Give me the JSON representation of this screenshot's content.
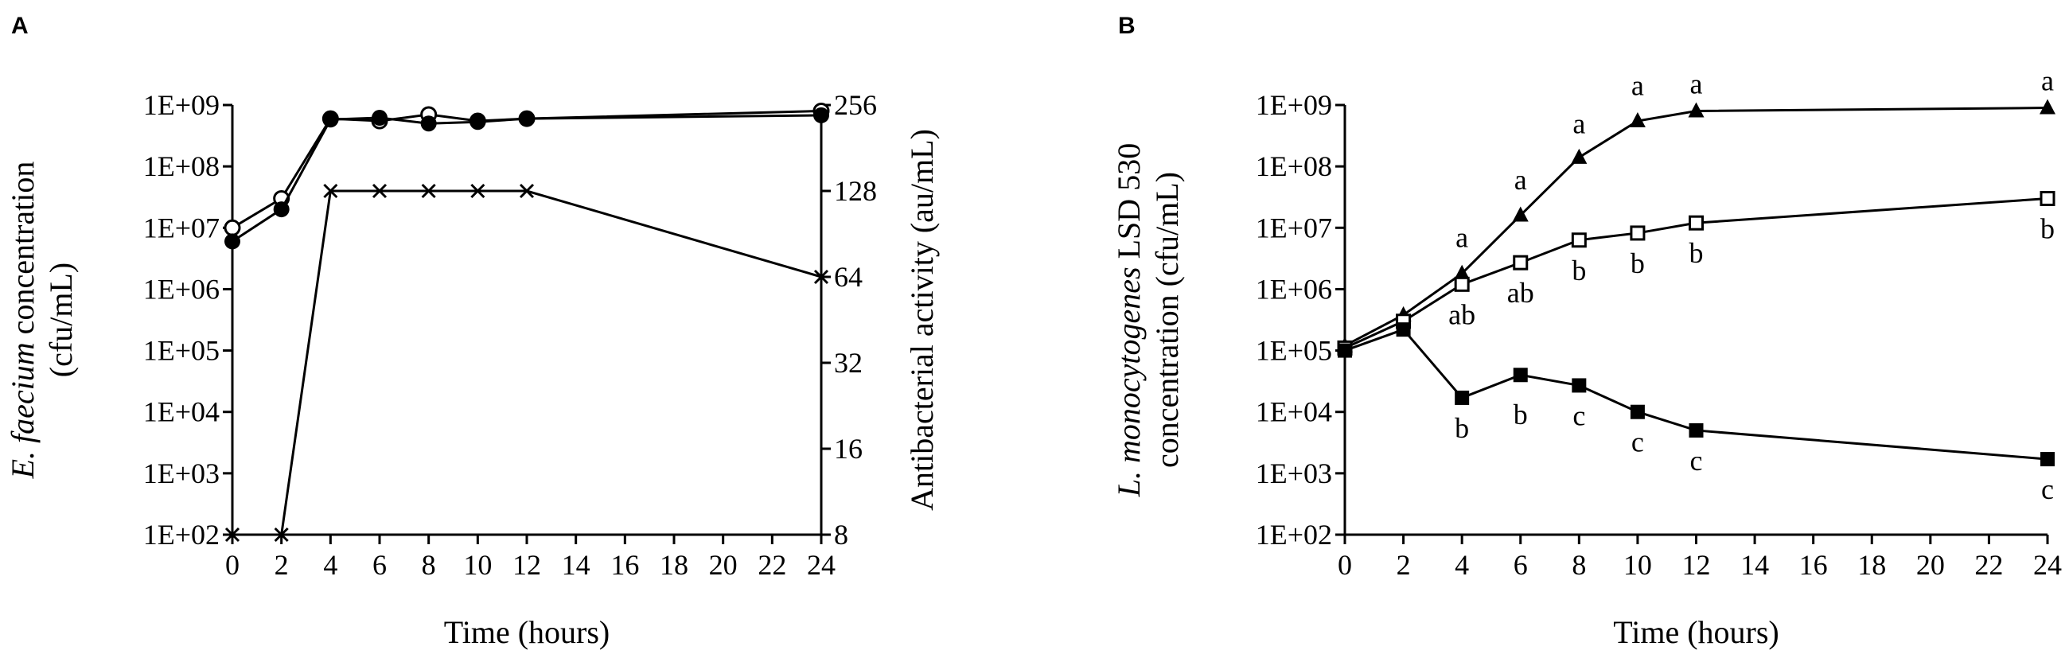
{
  "chart_data": [
    {
      "panel_label": "A",
      "type": "line",
      "ylabel_italic": "E. faecium",
      "ylabel_rest": " concentration",
      "ylabel_line2": "(cfu/mL)",
      "y2label": "Antibacterial activity (au/mL)",
      "xlabel": "Time (hours)",
      "x_ticks": [
        0,
        2,
        4,
        6,
        8,
        10,
        12,
        14,
        16,
        18,
        20,
        22,
        24
      ],
      "xlim": [
        0,
        24
      ],
      "y_scale": "log",
      "ylim": [
        100,
        1000000000
      ],
      "y_ticks": [
        "1E+02",
        "1E+03",
        "1E+04",
        "1E+05",
        "1E+06",
        "1E+07",
        "1E+08",
        "1E+09"
      ],
      "y_tick_values": [
        100,
        1000,
        10000,
        100000,
        1000000,
        10000000,
        100000000,
        1000000000
      ],
      "y2_scale": "log2",
      "y2lim": [
        8,
        256
      ],
      "y2_ticks": [
        "8",
        "16",
        "32",
        "64",
        "128",
        "256"
      ],
      "y2_tick_values": [
        8,
        16,
        32,
        64,
        128,
        256
      ],
      "series": [
        {
          "marker": "open-circle",
          "axis": "left",
          "x": [
            0,
            2,
            4,
            6,
            8,
            10,
            12,
            24
          ],
          "y": [
            10000000,
            30000000,
            600000000,
            550000000,
            700000000,
            550000000,
            600000000,
            800000000
          ]
        },
        {
          "marker": "filled-circle",
          "axis": "left",
          "x": [
            0,
            2,
            4,
            6,
            8,
            10,
            12,
            24
          ],
          "y": [
            6000000,
            20000000,
            580000000,
            620000000,
            500000000,
            530000000,
            600000000,
            680000000
          ]
        },
        {
          "marker": "cross",
          "axis": "right",
          "x": [
            0,
            2,
            4,
            6,
            8,
            10,
            12,
            24
          ],
          "y": [
            8,
            8,
            128,
            128,
            128,
            128,
            128,
            64
          ]
        }
      ],
      "point_labels": []
    },
    {
      "panel_label": "B",
      "type": "line",
      "ylabel_italic": "L. monocytogenes",
      "ylabel_rest": " LSD 530",
      "ylabel_line2": "concentration (cfu/mL)",
      "y2label": "",
      "xlabel": "Time (hours)",
      "x_ticks": [
        0,
        2,
        4,
        6,
        8,
        10,
        12,
        14,
        16,
        18,
        20,
        22,
        24
      ],
      "xlim": [
        0,
        24
      ],
      "y_scale": "log",
      "ylim": [
        100,
        1000000000
      ],
      "y_ticks": [
        "1E+02",
        "1E+03",
        "1E+04",
        "1E+05",
        "1E+06",
        "1E+07",
        "1E+08",
        "1E+09"
      ],
      "y_tick_values": [
        100,
        1000,
        10000,
        100000,
        1000000,
        10000000,
        100000000,
        1000000000
      ],
      "series": [
        {
          "marker": "filled-triangle",
          "axis": "left",
          "x": [
            0,
            2,
            4,
            6,
            8,
            10,
            12,
            24
          ],
          "y": [
            120000,
            380000,
            1800000,
            16000000,
            140000000,
            550000000,
            800000000,
            900000000
          ]
        },
        {
          "marker": "open-square",
          "axis": "left",
          "x": [
            0,
            2,
            4,
            6,
            8,
            10,
            12,
            24
          ],
          "y": [
            110000,
            300000,
            1200000,
            2700000,
            6300000,
            8200000,
            12000000,
            30000000
          ]
        },
        {
          "marker": "filled-square",
          "axis": "left",
          "x": [
            0,
            2,
            4,
            6,
            8,
            10,
            12,
            24
          ],
          "y": [
            100000,
            220000,
            17000,
            40000,
            27000,
            10000,
            5000,
            1700
          ]
        }
      ],
      "point_labels": [
        {
          "x": 4,
          "y": 2500000,
          "pos": "above",
          "text": "a"
        },
        {
          "x": 6,
          "y": 22000000,
          "pos": "above",
          "text": "a"
        },
        {
          "x": 8,
          "y": 180000000,
          "pos": "above",
          "text": "a"
        },
        {
          "x": 10,
          "y": 750000000,
          "pos": "above",
          "text": "a"
        },
        {
          "x": 12,
          "y": 800000000,
          "pos": "above",
          "text": "a"
        },
        {
          "x": 24,
          "y": 900000000,
          "pos": "above",
          "text": "a"
        },
        {
          "x": 4,
          "y": 1200000,
          "pos": "below",
          "text": "ab"
        },
        {
          "x": 6,
          "y": 2700000,
          "pos": "below",
          "text": "ab"
        },
        {
          "x": 8,
          "y": 6300000,
          "pos": "below",
          "text": "b"
        },
        {
          "x": 10,
          "y": 8200000,
          "pos": "below",
          "text": "b"
        },
        {
          "x": 12,
          "y": 12000000,
          "pos": "below",
          "text": "b"
        },
        {
          "x": 24,
          "y": 30000000,
          "pos": "below",
          "text": "b"
        },
        {
          "x": 4,
          "y": 17000,
          "pos": "below",
          "text": "b"
        },
        {
          "x": 6,
          "y": 28000,
          "pos": "below",
          "text": "b"
        },
        {
          "x": 8,
          "y": 27000,
          "pos": "below",
          "text": "c"
        },
        {
          "x": 10,
          "y": 10000,
          "pos": "below",
          "text": "c"
        },
        {
          "x": 12,
          "y": 5000,
          "pos": "below",
          "text": "c"
        },
        {
          "x": 24,
          "y": 1700,
          "pos": "below",
          "text": "c"
        }
      ]
    }
  ]
}
